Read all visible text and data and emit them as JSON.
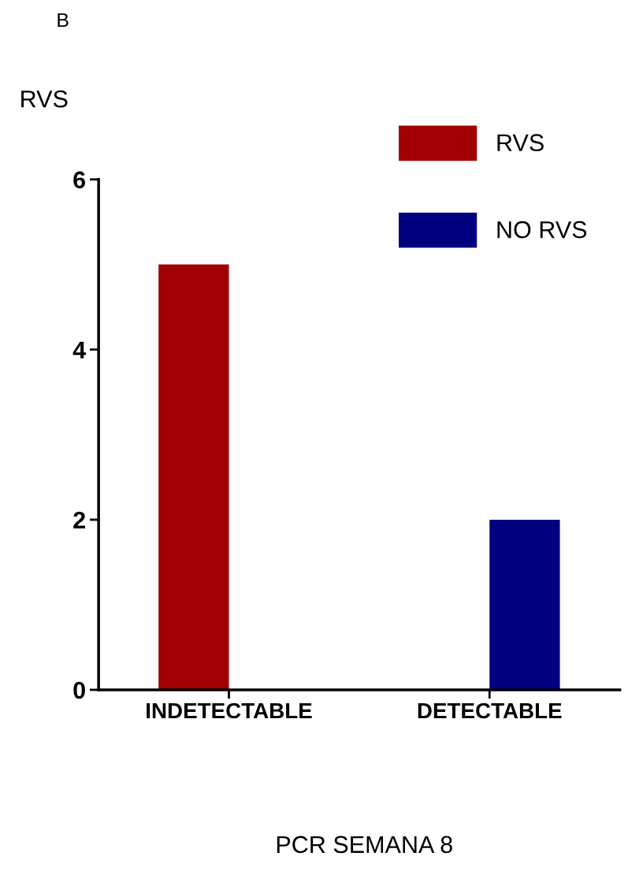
{
  "chart_data": {
    "type": "bar",
    "title": "B",
    "ylabel": "RVS",
    "xlabel": "PCR SEMANA 8",
    "categories": [
      "INDETECTABLE",
      "DETECTABLE"
    ],
    "series": [
      {
        "name": "RVS",
        "color": "#a00000",
        "values": [
          5,
          0
        ]
      },
      {
        "name": "NO RVS",
        "color": "#000080",
        "values": [
          0,
          2
        ]
      }
    ],
    "ylim": [
      0,
      6
    ],
    "yticks": [
      0,
      2,
      4,
      6
    ],
    "grid": false,
    "legend": "top right"
  }
}
